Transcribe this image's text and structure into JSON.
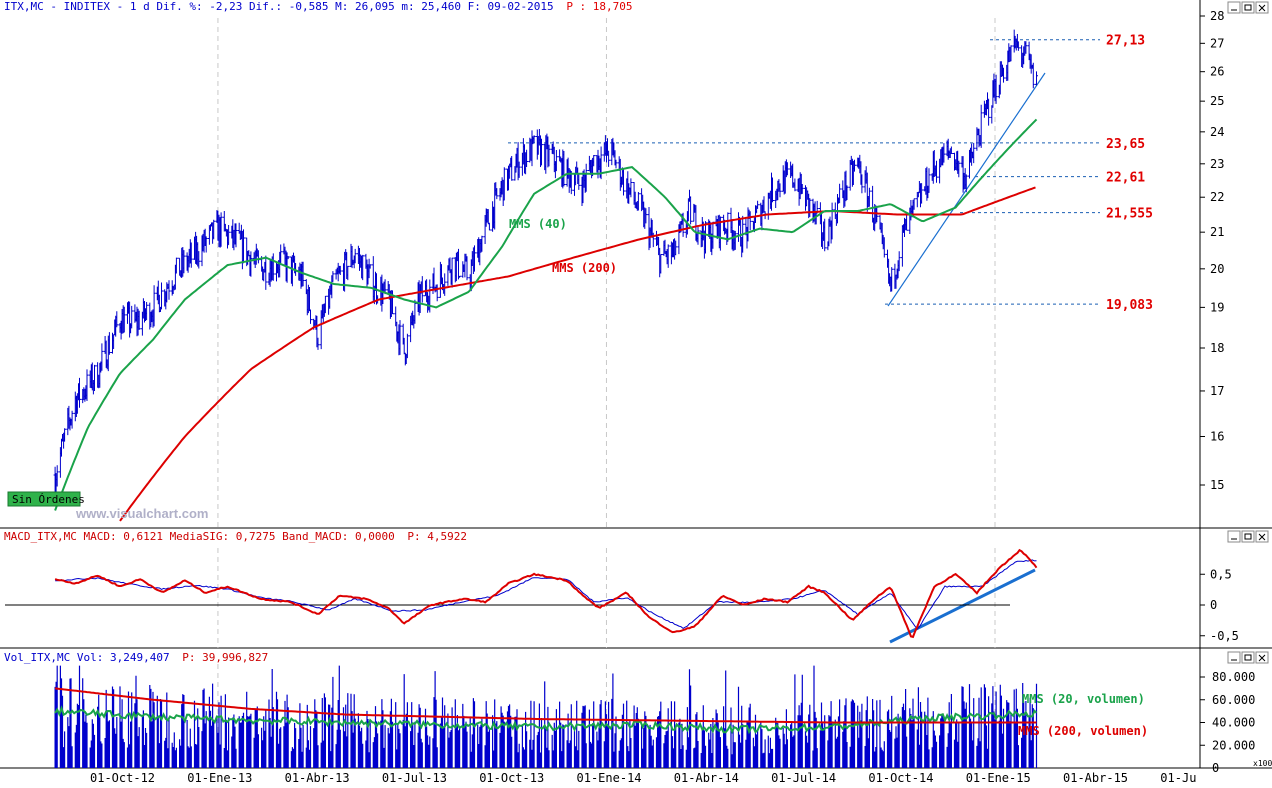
{
  "header": {
    "price": {
      "symbol": "ITX,MC",
      "name": "INDITEX",
      "period": "1 d",
      "stats": "Dif. %: -2,23 Dif.: -0,585 M: 26,095 m: 25,460 F: 09-02-2015",
      "p_label": "P : 18,705"
    },
    "macd": {
      "text": "MACD_ITX,MC MACD: 0,6121 MediaSIG: 0,7275 Band_MACD: 0,0000",
      "p_label": "P: 4,5922"
    },
    "vol": {
      "text": "Vol_ITX,MC Vol: 3,249,407",
      "p_label": "P: 39,996,827"
    }
  },
  "watermark": "www.visualchart.com",
  "badge": "Sin Órdenes",
  "labels": {
    "mms40": "MMS (40)",
    "mms200": "MMS (200)",
    "vol20": "MMS (20, volumen)",
    "vol200": "MMS (200, volumen)",
    "vol_unit": "x100"
  },
  "colors": {
    "price": "#0000cc",
    "mms40": "#1aa34a",
    "mms200": "#dd0000",
    "macd": "#dd0000",
    "signal": "#0000cc",
    "trend": "#1a6fd0",
    "level": "#e00000"
  },
  "chart_data": [
    {
      "type": "line",
      "title": "ITX,MC - INDITEX - 1 d",
      "x_ticks": [
        "01-Oct-12",
        "01-Ene-13",
        "01-Abr-13",
        "01-Jul-13",
        "01-Oct-13",
        "01-Ene-14",
        "01-Abr-14",
        "01-Jul-14",
        "01-Oct-14",
        "01-Ene-15",
        "01-Abr-15",
        "01-Ju"
      ],
      "y_ticks": [
        "15",
        "16",
        "17",
        "18",
        "19",
        "20",
        "21",
        "22",
        "23",
        "24",
        "25",
        "26",
        "27",
        "28"
      ],
      "y_scale": "log",
      "ylim": [
        14.3,
        28
      ],
      "levels": [
        {
          "label": "27,13",
          "value": 27.13
        },
        {
          "label": "23,65",
          "value": 23.65
        },
        {
          "label": "22,61",
          "value": 22.61
        },
        {
          "label": "21,555",
          "value": 21.555
        },
        {
          "label": "19,083",
          "value": 19.083
        }
      ],
      "series": [
        {
          "name": "ITX,MC",
          "points": [
            [
              "2012-08-01",
              15.2
            ],
            [
              "2012-08-20",
              16.8
            ],
            [
              "2012-09-10",
              17.4
            ],
            [
              "2012-10-01",
              18.7
            ],
            [
              "2012-10-15",
              18.6
            ],
            [
              "2012-11-01",
              19.0
            ],
            [
              "2012-11-20",
              19.8
            ],
            [
              "2012-12-10",
              20.4
            ],
            [
              "2013-01-01",
              21.1
            ],
            [
              "2013-01-20",
              20.7
            ],
            [
              "2013-02-10",
              20.0
            ],
            [
              "2013-03-01",
              20.2
            ],
            [
              "2013-03-20",
              19.8
            ],
            [
              "2013-04-05",
              18.3
            ],
            [
              "2013-04-20",
              19.6
            ],
            [
              "2013-05-10",
              20.4
            ],
            [
              "2013-05-25",
              19.7
            ],
            [
              "2013-06-10",
              19.2
            ],
            [
              "2013-06-25",
              17.9
            ],
            [
              "2013-07-10",
              19.3
            ],
            [
              "2013-07-25",
              19.6
            ],
            [
              "2013-08-10",
              20.2
            ],
            [
              "2013-08-25",
              19.8
            ],
            [
              "2013-09-10",
              21.2
            ],
            [
              "2013-09-25",
              22.3
            ],
            [
              "2013-10-10",
              23.1
            ],
            [
              "2013-10-25",
              23.5
            ],
            [
              "2013-11-10",
              23.2
            ],
            [
              "2013-11-25",
              22.7
            ],
            [
              "2013-12-10",
              22.4
            ],
            [
              "2013-12-20",
              23.1
            ],
            [
              "2014-01-05",
              23.4
            ],
            [
              "2014-01-20",
              22.3
            ],
            [
              "2014-02-05",
              21.4
            ],
            [
              "2014-02-20",
              20.3
            ],
            [
              "2014-03-05",
              20.4
            ],
            [
              "2014-03-20",
              21.6
            ],
            [
              "2014-04-05",
              20.8
            ],
            [
              "2014-04-20",
              21.2
            ],
            [
              "2014-05-10",
              20.9
            ],
            [
              "2014-05-25",
              21.6
            ],
            [
              "2014-06-10",
              22.4
            ],
            [
              "2014-06-25",
              22.6
            ],
            [
              "2014-07-10",
              21.8
            ],
            [
              "2014-07-25",
              20.8
            ],
            [
              "2014-08-10",
              22.1
            ],
            [
              "2014-08-25",
              23.0
            ],
            [
              "2014-09-10",
              21.4
            ],
            [
              "2014-09-25",
              19.5
            ],
            [
              "2014-10-05",
              20.8
            ],
            [
              "2014-10-20",
              21.8
            ],
            [
              "2014-11-05",
              22.9
            ],
            [
              "2014-11-20",
              23.4
            ],
            [
              "2014-12-05",
              22.6
            ],
            [
              "2014-12-15",
              23.7
            ],
            [
              "2014-12-25",
              24.8
            ],
            [
              "2015-01-10",
              26.2
            ],
            [
              "2015-01-20",
              26.9
            ],
            [
              "2015-01-30",
              26.5
            ],
            [
              "2015-02-09",
              25.5
            ]
          ]
        },
        {
          "name": "MMS (40)",
          "points": [
            [
              "2012-08-01",
              14.5
            ],
            [
              "2012-09-01",
              16.2
            ],
            [
              "2012-10-01",
              17.4
            ],
            [
              "2012-11-01",
              18.2
            ],
            [
              "2012-12-01",
              19.2
            ],
            [
              "2013-01-10",
              20.1
            ],
            [
              "2013-02-15",
              20.3
            ],
            [
              "2013-03-20",
              19.9
            ],
            [
              "2013-04-20",
              19.6
            ],
            [
              "2013-05-25",
              19.5
            ],
            [
              "2013-06-25",
              19.2
            ],
            [
              "2013-07-25",
              19.0
            ],
            [
              "2013-08-25",
              19.4
            ],
            [
              "2013-09-25",
              20.6
            ],
            [
              "2013-10-25",
              22.1
            ],
            [
              "2013-11-25",
              22.7
            ],
            [
              "2013-12-25",
              22.7
            ],
            [
              "2014-01-25",
              22.9
            ],
            [
              "2014-02-25",
              22.0
            ],
            [
              "2014-03-25",
              21.0
            ],
            [
              "2014-04-25",
              20.8
            ],
            [
              "2014-05-25",
              21.1
            ],
            [
              "2014-06-25",
              21.0
            ],
            [
              "2014-07-25",
              21.6
            ],
            [
              "2014-08-25",
              21.6
            ],
            [
              "2014-09-25",
              21.8
            ],
            [
              "2014-10-25",
              21.3
            ],
            [
              "2014-11-25",
              21.7
            ],
            [
              "2014-12-20",
              22.6
            ],
            [
              "2015-01-20",
              23.7
            ],
            [
              "2015-02-09",
              24.4
            ]
          ]
        },
        {
          "name": "MMS (200)",
          "points": [
            [
              "2012-10-01",
              14.3
            ],
            [
              "2012-12-01",
              16.0
            ],
            [
              "2013-02-01",
              17.5
            ],
            [
              "2013-04-01",
              18.5
            ],
            [
              "2013-06-01",
              19.2
            ],
            [
              "2013-08-01",
              19.5
            ],
            [
              "2013-10-01",
              19.8
            ],
            [
              "2013-12-01",
              20.3
            ],
            [
              "2014-02-01",
              20.8
            ],
            [
              "2014-04-01",
              21.2
            ],
            [
              "2014-06-01",
              21.5
            ],
            [
              "2014-08-01",
              21.6
            ],
            [
              "2014-10-01",
              21.5
            ],
            [
              "2014-12-01",
              21.5
            ],
            [
              "2015-02-09",
              22.3
            ]
          ]
        }
      ]
    },
    {
      "type": "line",
      "title": "MACD_ITX,MC",
      "y_ticks": [
        "0,5",
        "0",
        "-0,5"
      ],
      "ylim": [
        -0.75,
        0.95
      ],
      "series": [
        {
          "name": "MACD",
          "points": [
            [
              "2012-08-01",
              0.42
            ],
            [
              "2012-08-20",
              0.35
            ],
            [
              "2012-09-10",
              0.48
            ],
            [
              "2012-10-01",
              0.3
            ],
            [
              "2012-10-20",
              0.42
            ],
            [
              "2012-11-10",
              0.2
            ],
            [
              "2012-12-01",
              0.4
            ],
            [
              "2012-12-20",
              0.2
            ],
            [
              "2013-01-10",
              0.3
            ],
            [
              "2013-02-10",
              0.1
            ],
            [
              "2013-03-10",
              0.05
            ],
            [
              "2013-04-05",
              -0.15
            ],
            [
              "2013-04-25",
              0.15
            ],
            [
              "2013-05-20",
              0.1
            ],
            [
              "2013-06-10",
              -0.05
            ],
            [
              "2013-06-25",
              -0.3
            ],
            [
              "2013-07-20",
              0.0
            ],
            [
              "2013-08-20",
              0.1
            ],
            [
              "2013-09-10",
              0.05
            ],
            [
              "2013-10-01",
              0.35
            ],
            [
              "2013-10-25",
              0.5
            ],
            [
              "2013-11-25",
              0.4
            ],
            [
              "2013-12-10",
              0.15
            ],
            [
              "2013-12-25",
              -0.05
            ],
            [
              "2014-01-20",
              0.2
            ],
            [
              "2014-02-10",
              -0.2
            ],
            [
              "2014-03-05",
              -0.45
            ],
            [
              "2014-03-25",
              -0.35
            ],
            [
              "2014-04-20",
              0.15
            ],
            [
              "2014-05-10",
              0.0
            ],
            [
              "2014-05-30",
              0.1
            ],
            [
              "2014-06-20",
              0.05
            ],
            [
              "2014-07-10",
              0.3
            ],
            [
              "2014-07-25",
              0.2
            ],
            [
              "2014-08-20",
              -0.25
            ],
            [
              "2014-09-10",
              0.1
            ],
            [
              "2014-09-25",
              0.3
            ],
            [
              "2014-10-15",
              -0.55
            ],
            [
              "2014-11-05",
              0.3
            ],
            [
              "2014-11-25",
              0.5
            ],
            [
              "2014-12-15",
              0.2
            ],
            [
              "2015-01-05",
              0.6
            ],
            [
              "2015-01-25",
              0.9
            ],
            [
              "2015-02-09",
              0.61
            ]
          ]
        },
        {
          "name": "MediaSIG",
          "points": [
            [
              "2012-08-01",
              0.4
            ],
            [
              "2012-09-10",
              0.44
            ],
            [
              "2012-10-10",
              0.34
            ],
            [
              "2012-11-10",
              0.26
            ],
            [
              "2012-12-10",
              0.32
            ],
            [
              "2013-01-10",
              0.26
            ],
            [
              "2013-02-10",
              0.12
            ],
            [
              "2013-03-10",
              0.06
            ],
            [
              "2013-04-15",
              -0.08
            ],
            [
              "2013-05-10",
              0.1
            ],
            [
              "2013-06-15",
              -0.1
            ],
            [
              "2013-07-15",
              -0.08
            ],
            [
              "2013-08-20",
              0.06
            ],
            [
              "2013-09-20",
              0.15
            ],
            [
              "2013-10-25",
              0.45
            ],
            [
              "2013-11-25",
              0.42
            ],
            [
              "2013-12-20",
              0.05
            ],
            [
              "2014-01-20",
              0.12
            ],
            [
              "2014-02-15",
              -0.15
            ],
            [
              "2014-03-15",
              -0.38
            ],
            [
              "2014-04-15",
              0.05
            ],
            [
              "2014-05-20",
              0.04
            ],
            [
              "2014-06-25",
              0.1
            ],
            [
              "2014-07-25",
              0.24
            ],
            [
              "2014-08-25",
              -0.15
            ],
            [
              "2014-09-25",
              0.2
            ],
            [
              "2014-10-20",
              -0.4
            ],
            [
              "2014-11-15",
              0.3
            ],
            [
              "2014-12-20",
              0.3
            ],
            [
              "2015-01-20",
              0.7
            ],
            [
              "2015-02-09",
              0.73
            ]
          ]
        }
      ]
    },
    {
      "type": "bar",
      "title": "Vol_ITX,MC",
      "y_ticks": [
        "80.000",
        "60.000",
        "40.000",
        "20.000",
        "0"
      ],
      "ylim": [
        0,
        90000
      ],
      "series": [
        {
          "name": "Vol",
          "values": "daily bars ranging ~15.000 to ~90.000"
        },
        {
          "name": "MMS (20, volumen)",
          "points": [
            [
              "2012-08-01",
              50000
            ],
            [
              "2012-11-01",
              45000
            ],
            [
              "2013-02-01",
              42000
            ],
            [
              "2013-05-01",
              40000
            ],
            [
              "2013-08-01",
              38000
            ],
            [
              "2013-11-01",
              36000
            ],
            [
              "2014-02-01",
              38000
            ],
            [
              "2014-05-01",
              34000
            ],
            [
              "2014-08-01",
              36000
            ],
            [
              "2014-11-01",
              44000
            ],
            [
              "2015-02-09",
              48000
            ]
          ]
        },
        {
          "name": "MMS (200, volumen)",
          "points": [
            [
              "2012-08-01",
              70000
            ],
            [
              "2012-11-01",
              60000
            ],
            [
              "2013-02-01",
              52000
            ],
            [
              "2013-05-01",
              47000
            ],
            [
              "2013-08-01",
              45000
            ],
            [
              "2013-11-01",
              43000
            ],
            [
              "2014-02-01",
              42000
            ],
            [
              "2014-05-01",
              41000
            ],
            [
              "2014-08-01",
              40000
            ],
            [
              "2014-11-01",
              40000
            ],
            [
              "2015-02-09",
              40000
            ]
          ]
        }
      ]
    }
  ]
}
